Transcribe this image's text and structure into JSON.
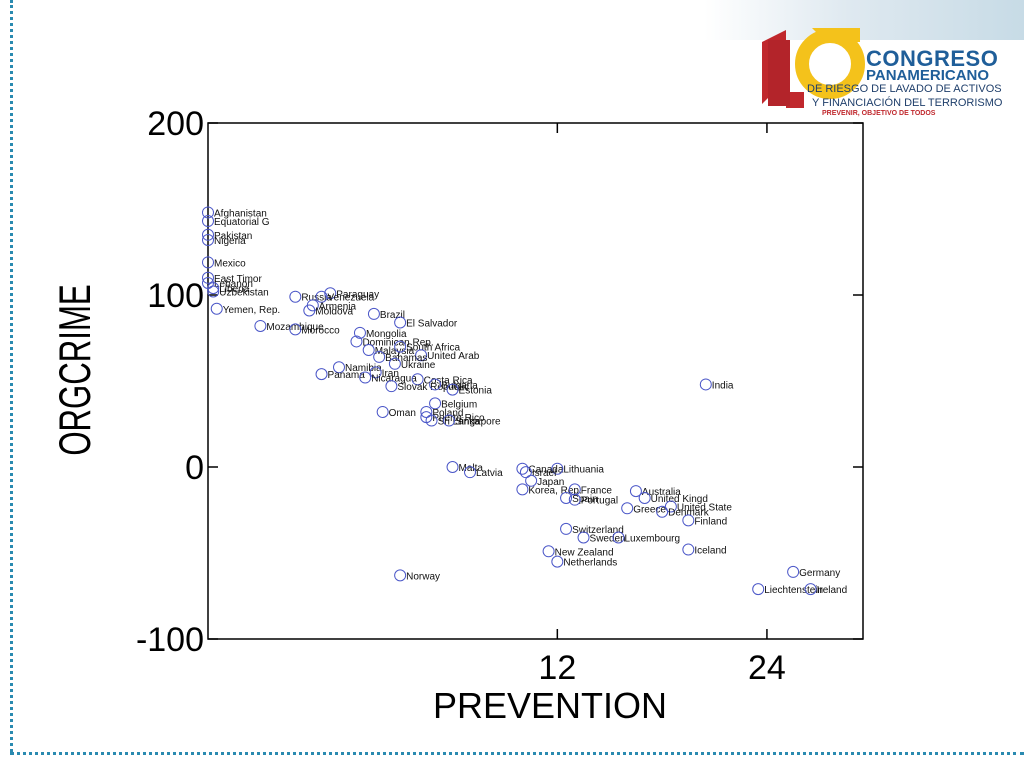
{
  "logo": {
    "number": "16",
    "line1": "CONGRESO",
    "line2": "PANAMERICANO",
    "line3": "DE RIESGO DE LAVADO DE ACTIVOS",
    "line4": "Y FINANCIACIÓN DEL TERRORISMO",
    "tagline": "PREVENIR, OBJETIVO DE TODOS"
  },
  "colors": {
    "marker": "#4b57c8",
    "axis": "#000000",
    "logo_red": "#c0282d",
    "logo_yellow": "#f4c21b",
    "logo_blue": "#1f5e99",
    "border_dots": "#2a8ab0"
  },
  "chart_data": {
    "type": "scatter",
    "xlabel": "PREVENTION",
    "ylabel": "ORGCRIME",
    "xlim": [
      -8,
      29.5
    ],
    "ylim": [
      -100,
      200
    ],
    "xticks": [
      12,
      24
    ],
    "yticks": [
      -100,
      0,
      100,
      200
    ],
    "grid": false,
    "points": [
      {
        "label": "Afghanistan",
        "x": -8,
        "y": 148
      },
      {
        "label": "Equatorial G",
        "x": -8,
        "y": 143
      },
      {
        "label": "Pakistan",
        "x": -8,
        "y": 135
      },
      {
        "label": "Nigeria",
        "x": -8,
        "y": 132
      },
      {
        "label": "Mexico",
        "x": -8,
        "y": 119
      },
      {
        "label": "East Timor",
        "x": -8,
        "y": 110
      },
      {
        "label": "Lebanon",
        "x": -8,
        "y": 107
      },
      {
        "label": "Liberia",
        "x": -7.7,
        "y": 104
      },
      {
        "label": "Uzbekistan",
        "x": -7.7,
        "y": 102
      },
      {
        "label": "Yemen, Rep.",
        "x": -7.5,
        "y": 92
      },
      {
        "label": "Russia",
        "x": -3,
        "y": 99
      },
      {
        "label": "Paraguay",
        "x": -1,
        "y": 101
      },
      {
        "label": "Venezuela",
        "x": -1.5,
        "y": 99
      },
      {
        "label": "Armenia",
        "x": -2,
        "y": 94
      },
      {
        "label": "Moldova",
        "x": -2.2,
        "y": 91
      },
      {
        "label": "Mozambique",
        "x": -5,
        "y": 82
      },
      {
        "label": "Morocco",
        "x": -3,
        "y": 80
      },
      {
        "label": "Brazil",
        "x": 1.5,
        "y": 89
      },
      {
        "label": "El Salvador",
        "x": 3,
        "y": 84
      },
      {
        "label": "Mongolia",
        "x": 0.7,
        "y": 78
      },
      {
        "label": "Dominican Rep.",
        "x": 0.5,
        "y": 73
      },
      {
        "label": "Malaysia",
        "x": 1.2,
        "y": 68
      },
      {
        "label": "South Africa",
        "x": 3,
        "y": 70
      },
      {
        "label": "United Arab",
        "x": 4.2,
        "y": 65
      },
      {
        "label": "Bahamas",
        "x": 1.8,
        "y": 64
      },
      {
        "label": "Ukraine",
        "x": 2.7,
        "y": 60
      },
      {
        "label": "Namibia",
        "x": -0.5,
        "y": 58
      },
      {
        "label": "Iran",
        "x": 1.6,
        "y": 55
      },
      {
        "label": "Panama",
        "x": -1.5,
        "y": 54
      },
      {
        "label": "Nicaragua",
        "x": 1,
        "y": 52
      },
      {
        "label": "Costa Rica",
        "x": 4,
        "y": 51
      },
      {
        "label": "Slovak Republic",
        "x": 2.5,
        "y": 47
      },
      {
        "label": "Bulgaria",
        "x": 5,
        "y": 48
      },
      {
        "label": "Estonia",
        "x": 6,
        "y": 45
      },
      {
        "label": "India",
        "x": 20.5,
        "y": 48
      },
      {
        "label": "Belgium",
        "x": 5,
        "y": 37
      },
      {
        "label": "Oman",
        "x": 2,
        "y": 32
      },
      {
        "label": "Poland",
        "x": 4.5,
        "y": 32
      },
      {
        "label": "Puerto Rico",
        "x": 4.5,
        "y": 29
      },
      {
        "label": "Sri Lanka",
        "x": 4.8,
        "y": 27
      },
      {
        "label": "Singapore",
        "x": 5.8,
        "y": 27
      },
      {
        "label": "Malta",
        "x": 6,
        "y": 0
      },
      {
        "label": "Latvia",
        "x": 7,
        "y": -3
      },
      {
        "label": "Canada",
        "x": 10,
        "y": -1
      },
      {
        "label": "Lithuania",
        "x": 12,
        "y": -1
      },
      {
        "label": "Israel",
        "x": 10.2,
        "y": -3
      },
      {
        "label": "Japan",
        "x": 10.5,
        "y": -8
      },
      {
        "label": "Korea, Rep.",
        "x": 10,
        "y": -13
      },
      {
        "label": "France",
        "x": 13,
        "y": -13
      },
      {
        "label": "Australia",
        "x": 16.5,
        "y": -14
      },
      {
        "label": "Spain",
        "x": 12.5,
        "y": -18
      },
      {
        "label": "Portugal",
        "x": 13,
        "y": -19
      },
      {
        "label": "United Kingd",
        "x": 17,
        "y": -18
      },
      {
        "label": "Greece",
        "x": 16,
        "y": -24
      },
      {
        "label": "United State",
        "x": 18.5,
        "y": -23
      },
      {
        "label": "Denmark",
        "x": 18,
        "y": -26
      },
      {
        "label": "Finland",
        "x": 19.5,
        "y": -31
      },
      {
        "label": "Switzerland",
        "x": 12.5,
        "y": -36
      },
      {
        "label": "Sweden",
        "x": 13.5,
        "y": -41
      },
      {
        "label": "Luxembourg",
        "x": 15.5,
        "y": -41
      },
      {
        "label": "Iceland",
        "x": 19.5,
        "y": -48
      },
      {
        "label": "New Zealand",
        "x": 11.5,
        "y": -49
      },
      {
        "label": "Netherlands",
        "x": 12,
        "y": -55
      },
      {
        "label": "Norway",
        "x": 3,
        "y": -63
      },
      {
        "label": "Germany",
        "x": 25.5,
        "y": -61
      },
      {
        "label": "Liechtenstein",
        "x": 23.5,
        "y": -71
      },
      {
        "label": "Ireland",
        "x": 26.5,
        "y": -71
      }
    ]
  }
}
